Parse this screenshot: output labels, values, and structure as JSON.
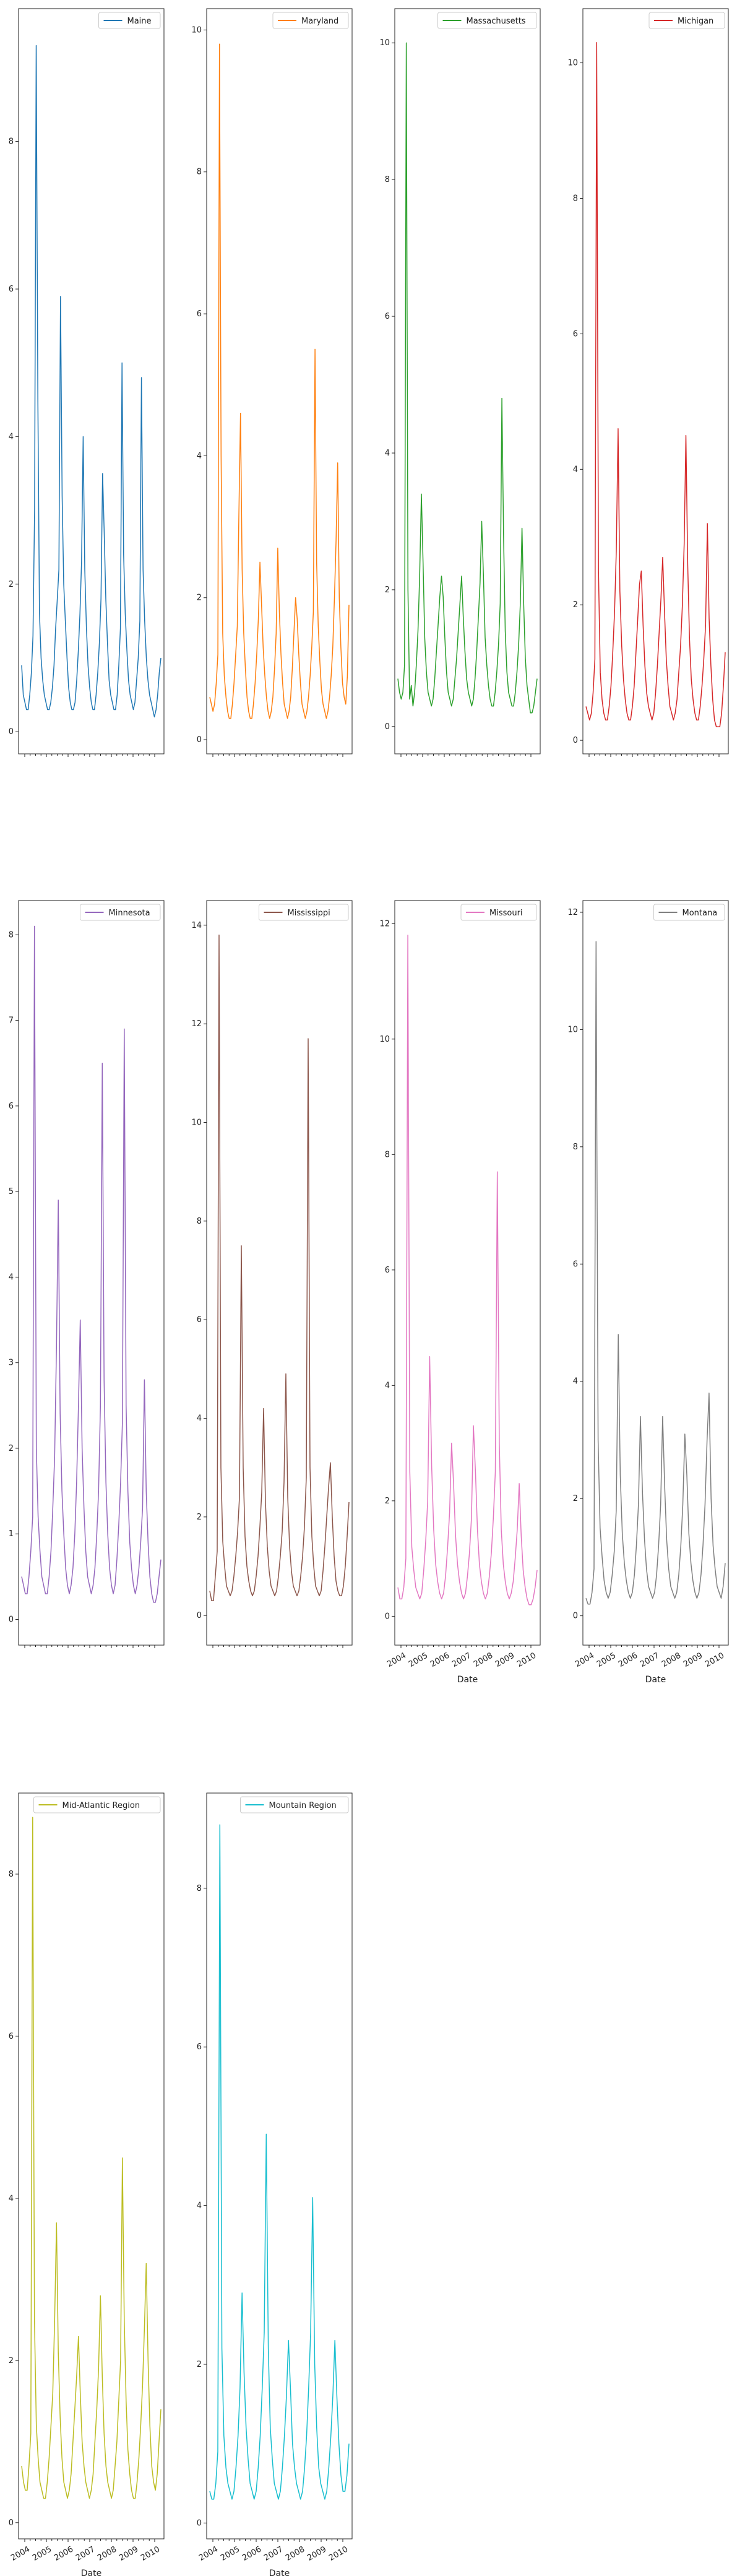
{
  "chart_data": [
    {
      "type": "line",
      "series": [
        {
          "name": "Maine",
          "color": "#1f77b4",
          "y": [
            0.9,
            0.5,
            0.4,
            0.3,
            0.3,
            0.5,
            0.8,
            1.3,
            3.0,
            9.3,
            4.5,
            1.6,
            1.0,
            0.7,
            0.5,
            0.4,
            0.3,
            0.3,
            0.4,
            0.6,
            0.9,
            1.4,
            1.8,
            2.2,
            5.9,
            3.2,
            2.0,
            1.5,
            1.0,
            0.6,
            0.4,
            0.3,
            0.3,
            0.4,
            0.7,
            1.1,
            1.6,
            2.3,
            4.0,
            2.2,
            1.4,
            0.9,
            0.6,
            0.4,
            0.3,
            0.3,
            0.5,
            0.8,
            1.2,
            1.8,
            3.5,
            2.7,
            1.8,
            1.2,
            0.7,
            0.5,
            0.4,
            0.3,
            0.3,
            0.5,
            0.9,
            1.4,
            5.0,
            2.4,
            1.6,
            1.1,
            0.7,
            0.5,
            0.4,
            0.3,
            0.4,
            0.7,
            1.0,
            1.5,
            4.8,
            2.2,
            1.5,
            1.0,
            0.7,
            0.5,
            0.4,
            0.3,
            0.2,
            0.3,
            0.5,
            0.8,
            1.0
          ]
        }
      ],
      "xticks": [
        "",
        "",
        "",
        "",
        "",
        "",
        ""
      ],
      "yticks": [
        0,
        2,
        4,
        6,
        8
      ],
      "ylim": [
        -0.3,
        9.8
      ],
      "xlabel": "",
      "legend": "top-right"
    },
    {
      "type": "line",
      "series": [
        {
          "name": "Maryland",
          "color": "#ff7f0e",
          "y": [
            0.6,
            0.5,
            0.4,
            0.5,
            0.8,
            1.2,
            9.8,
            4.0,
            1.5,
            0.9,
            0.6,
            0.4,
            0.3,
            0.3,
            0.5,
            0.8,
            1.2,
            1.6,
            3.2,
            4.6,
            2.4,
            1.5,
            1.0,
            0.6,
            0.4,
            0.3,
            0.3,
            0.5,
            0.8,
            1.2,
            1.7,
            2.5,
            1.9,
            1.3,
            0.9,
            0.6,
            0.4,
            0.3,
            0.4,
            0.6,
            1.0,
            1.5,
            2.7,
            1.8,
            1.2,
            0.8,
            0.5,
            0.4,
            0.3,
            0.4,
            0.6,
            1.0,
            1.5,
            2.0,
            1.7,
            1.2,
            0.8,
            0.5,
            0.4,
            0.3,
            0.4,
            0.6,
            0.9,
            1.3,
            1.8,
            5.5,
            2.5,
            1.6,
            1.1,
            0.7,
            0.5,
            0.4,
            0.3,
            0.4,
            0.6,
            0.9,
            1.3,
            2.0,
            2.8,
            3.9,
            2.0,
            1.3,
            0.8,
            0.6,
            0.5,
            0.9,
            1.9
          ]
        }
      ],
      "xticks": [
        "",
        "",
        "",
        "",
        "",
        "",
        ""
      ],
      "yticks": [
        0,
        2,
        4,
        6,
        8,
        10
      ],
      "ylim": [
        -0.2,
        10.3
      ],
      "xlabel": "",
      "legend": "top-right"
    },
    {
      "type": "line",
      "series": [
        {
          "name": "Massachusetts",
          "color": "#2ca02c",
          "y": [
            0.7,
            0.5,
            0.4,
            0.5,
            0.9,
            10.0,
            2.0,
            0.4,
            0.6,
            0.3,
            0.5,
            0.9,
            1.4,
            2.2,
            3.4,
            2.4,
            1.3,
            0.8,
            0.5,
            0.4,
            0.3,
            0.4,
            0.7,
            1.1,
            1.5,
            1.9,
            2.2,
            1.9,
            1.3,
            0.8,
            0.5,
            0.4,
            0.3,
            0.4,
            0.7,
            1.0,
            1.4,
            1.8,
            2.2,
            1.6,
            1.1,
            0.7,
            0.5,
            0.4,
            0.3,
            0.4,
            0.7,
            1.1,
            1.6,
            2.1,
            3.0,
            2.2,
            1.3,
            0.9,
            0.6,
            0.4,
            0.3,
            0.3,
            0.5,
            0.8,
            1.2,
            1.8,
            4.8,
            2.8,
            1.4,
            0.8,
            0.5,
            0.4,
            0.3,
            0.3,
            0.5,
            0.8,
            1.2,
            1.8,
            2.9,
            1.8,
            1.0,
            0.6,
            0.4,
            0.2,
            0.2,
            0.3,
            0.5,
            0.7
          ]
        }
      ],
      "xticks": [
        "",
        "",
        "",
        "",
        "",
        "",
        ""
      ],
      "yticks": [
        0,
        2,
        4,
        6,
        8,
        10
      ],
      "ylim": [
        -0.4,
        10.5
      ],
      "xlabel": "",
      "legend": "top-right"
    },
    {
      "type": "line",
      "series": [
        {
          "name": "Michigan",
          "color": "#d62728",
          "y": [
            0.5,
            0.4,
            0.3,
            0.4,
            0.7,
            1.2,
            10.3,
            2.5,
            1.0,
            0.6,
            0.4,
            0.3,
            0.3,
            0.5,
            0.8,
            1.3,
            1.9,
            2.8,
            4.6,
            2.2,
            1.4,
            0.9,
            0.6,
            0.4,
            0.3,
            0.3,
            0.5,
            0.8,
            1.3,
            1.8,
            2.3,
            2.5,
            1.7,
            1.1,
            0.7,
            0.5,
            0.4,
            0.3,
            0.4,
            0.7,
            1.1,
            1.6,
            2.1,
            2.7,
            1.9,
            1.2,
            0.8,
            0.5,
            0.4,
            0.3,
            0.4,
            0.6,
            1.0,
            1.4,
            2.0,
            2.9,
            4.5,
            2.6,
            1.5,
            0.9,
            0.6,
            0.4,
            0.3,
            0.3,
            0.5,
            0.8,
            1.2,
            1.7,
            3.2,
            1.8,
            1.1,
            0.6,
            0.3,
            0.2,
            0.2,
            0.2,
            0.4,
            0.8,
            1.3
          ]
        }
      ],
      "xticks": [
        "",
        "",
        "",
        "",
        "",
        "",
        ""
      ],
      "yticks": [
        0,
        2,
        4,
        6,
        8,
        10
      ],
      "ylim": [
        -0.2,
        10.8
      ],
      "xlabel": "",
      "legend": "top-right"
    },
    {
      "type": "line",
      "series": [
        {
          "name": "Minnesota",
          "color": "#9467bd",
          "y": [
            0.5,
            0.4,
            0.3,
            0.3,
            0.5,
            0.8,
            1.2,
            8.1,
            2.0,
            1.2,
            0.8,
            0.5,
            0.4,
            0.3,
            0.3,
            0.5,
            0.8,
            1.3,
            1.9,
            3.2,
            4.9,
            2.4,
            1.5,
            1.0,
            0.6,
            0.4,
            0.3,
            0.4,
            0.6,
            1.0,
            1.6,
            2.5,
            3.5,
            2.0,
            1.3,
            0.8,
            0.5,
            0.4,
            0.3,
            0.4,
            0.6,
            1.0,
            1.5,
            2.5,
            6.5,
            2.8,
            1.6,
            1.0,
            0.6,
            0.4,
            0.3,
            0.4,
            0.7,
            1.1,
            1.6,
            2.3,
            6.9,
            2.5,
            1.5,
            0.9,
            0.6,
            0.4,
            0.3,
            0.4,
            0.6,
            0.9,
            1.3,
            2.8,
            1.5,
            0.9,
            0.5,
            0.3,
            0.2,
            0.2,
            0.3,
            0.5,
            0.7
          ]
        }
      ],
      "xticks": [
        "",
        "",
        "",
        "",
        "",
        "",
        ""
      ],
      "yticks": [
        0,
        1,
        2,
        3,
        4,
        5,
        6,
        7,
        8
      ],
      "ylim": [
        -0.3,
        8.4
      ],
      "xlabel": "",
      "legend": "top-right"
    },
    {
      "type": "line",
      "series": [
        {
          "name": "Mississippi",
          "color": "#8c564b",
          "y": [
            0.5,
            0.3,
            0.3,
            0.8,
            1.3,
            13.8,
            3.0,
            1.5,
            1.0,
            0.6,
            0.5,
            0.4,
            0.5,
            0.8,
            1.2,
            1.7,
            2.4,
            7.5,
            3.0,
            1.6,
            1.0,
            0.7,
            0.5,
            0.4,
            0.5,
            0.8,
            1.2,
            1.8,
            2.5,
            4.2,
            2.3,
            1.4,
            0.9,
            0.6,
            0.5,
            0.4,
            0.5,
            0.8,
            1.2,
            1.7,
            2.7,
            4.9,
            2.4,
            1.4,
            0.9,
            0.6,
            0.5,
            0.4,
            0.5,
            0.8,
            1.2,
            1.8,
            2.8,
            11.7,
            3.0,
            1.6,
            1.0,
            0.6,
            0.5,
            0.4,
            0.5,
            0.9,
            1.4,
            2.0,
            2.6,
            3.1,
            2.0,
            1.2,
            0.7,
            0.5,
            0.4,
            0.4,
            0.6,
            1.0,
            1.6,
            2.3
          ]
        }
      ],
      "xticks": [
        "",
        "",
        "",
        "",
        "",
        "",
        ""
      ],
      "yticks": [
        0,
        2,
        4,
        6,
        8,
        10,
        12,
        14
      ],
      "ylim": [
        -0.6,
        14.5
      ],
      "xlabel": "",
      "legend": "top-right"
    },
    {
      "type": "line",
      "series": [
        {
          "name": "Missouri",
          "color": "#e377c2",
          "y": [
            0.5,
            0.3,
            0.3,
            0.5,
            1.0,
            11.8,
            2.5,
            1.2,
            0.8,
            0.5,
            0.4,
            0.3,
            0.4,
            0.8,
            1.3,
            2.0,
            4.5,
            2.6,
            1.5,
            0.9,
            0.6,
            0.4,
            0.3,
            0.4,
            0.7,
            1.2,
            1.8,
            3.0,
            2.3,
            1.4,
            0.9,
            0.6,
            0.4,
            0.3,
            0.4,
            0.7,
            1.1,
            1.7,
            3.3,
            2.5,
            1.5,
            0.9,
            0.6,
            0.4,
            0.3,
            0.4,
            0.7,
            1.1,
            1.7,
            2.5,
            7.7,
            3.0,
            1.5,
            0.9,
            0.6,
            0.4,
            0.3,
            0.4,
            0.6,
            1.0,
            1.5,
            2.3,
            1.4,
            0.8,
            0.5,
            0.3,
            0.2,
            0.2,
            0.3,
            0.5,
            0.8
          ]
        }
      ],
      "xticks": [
        "2004",
        "2005",
        "2006",
        "2007",
        "2008",
        "2009",
        "2010"
      ],
      "yticks": [
        0,
        2,
        4,
        6,
        8,
        10,
        12
      ],
      "ylim": [
        -0.5,
        12.4
      ],
      "xlabel": "Date",
      "legend": "top-right"
    },
    {
      "type": "line",
      "series": [
        {
          "name": "Montana",
          "color": "#7f7f7f",
          "y": [
            0.3,
            0.2,
            0.2,
            0.4,
            0.8,
            11.5,
            3.0,
            1.5,
            1.0,
            0.6,
            0.4,
            0.3,
            0.4,
            0.7,
            1.1,
            1.8,
            4.8,
            2.4,
            1.4,
            0.9,
            0.6,
            0.4,
            0.3,
            0.4,
            0.7,
            1.2,
            1.9,
            3.4,
            2.1,
            1.3,
            0.8,
            0.5,
            0.4,
            0.3,
            0.4,
            0.7,
            1.2,
            1.9,
            3.4,
            2.2,
            1.3,
            0.8,
            0.5,
            0.4,
            0.3,
            0.4,
            0.7,
            1.2,
            1.9,
            3.1,
            2.4,
            1.4,
            0.9,
            0.6,
            0.4,
            0.3,
            0.4,
            0.7,
            1.2,
            1.9,
            3.0,
            3.8,
            2.0,
            1.2,
            0.8,
            0.5,
            0.4,
            0.3,
            0.5,
            0.9
          ]
        }
      ],
      "xticks": [
        "2004",
        "2005",
        "2006",
        "2007",
        "2008",
        "2009",
        "2010"
      ],
      "yticks": [
        0,
        2,
        4,
        6,
        8,
        10,
        12
      ],
      "ylim": [
        -0.5,
        12.2
      ],
      "xlabel": "Date",
      "legend": "top-right"
    },
    {
      "type": "line",
      "series": [
        {
          "name": "Mid-Atlantic Region",
          "color": "#bcbd22",
          "y": [
            0.7,
            0.5,
            0.4,
            0.4,
            0.7,
            1.1,
            8.7,
            2.5,
            1.2,
            0.8,
            0.5,
            0.4,
            0.3,
            0.3,
            0.5,
            0.8,
            1.2,
            1.6,
            2.5,
            3.7,
            2.1,
            1.3,
            0.8,
            0.5,
            0.4,
            0.3,
            0.4,
            0.6,
            1.0,
            1.4,
            1.8,
            2.3,
            1.6,
            1.0,
            0.7,
            0.5,
            0.4,
            0.3,
            0.4,
            0.6,
            1.0,
            1.4,
            1.9,
            2.8,
            1.8,
            1.1,
            0.7,
            0.5,
            0.4,
            0.3,
            0.4,
            0.7,
            1.0,
            1.5,
            2.0,
            4.5,
            2.5,
            1.5,
            0.9,
            0.6,
            0.4,
            0.3,
            0.3,
            0.5,
            0.8,
            1.2,
            1.7,
            2.4,
            3.2,
            2.0,
            1.2,
            0.7,
            0.5,
            0.4,
            0.6,
            1.0,
            1.4
          ]
        }
      ],
      "xticks": [
        "2004",
        "2005",
        "2006",
        "2007",
        "2008",
        "2009",
        "2010"
      ],
      "yticks": [
        0,
        2,
        4,
        6,
        8
      ],
      "ylim": [
        -0.2,
        9.0
      ],
      "xlabel": "Date",
      "legend": "top-right"
    },
    {
      "type": "line",
      "series": [
        {
          "name": "Mountain Region",
          "color": "#17becf",
          "y": [
            0.4,
            0.3,
            0.3,
            0.5,
            0.9,
            8.8,
            2.2,
            1.1,
            0.7,
            0.5,
            0.4,
            0.3,
            0.4,
            0.7,
            1.1,
            1.7,
            2.9,
            1.9,
            1.2,
            0.8,
            0.5,
            0.4,
            0.3,
            0.4,
            0.7,
            1.1,
            1.7,
            2.4,
            4.9,
            2.2,
            1.2,
            0.8,
            0.5,
            0.4,
            0.3,
            0.4,
            0.7,
            1.1,
            1.6,
            2.3,
            1.7,
            1.0,
            0.7,
            0.5,
            0.4,
            0.3,
            0.4,
            0.7,
            1.1,
            1.7,
            2.4,
            4.1,
            2.0,
            1.2,
            0.7,
            0.5,
            0.4,
            0.3,
            0.4,
            0.7,
            1.1,
            1.6,
            2.3,
            1.6,
            1.0,
            0.6,
            0.4,
            0.4,
            0.6,
            1.0
          ]
        }
      ],
      "xticks": [
        "2004",
        "2005",
        "2006",
        "2007",
        "2008",
        "2009",
        "2010"
      ],
      "yticks": [
        0,
        2,
        4,
        6,
        8
      ],
      "ylim": [
        -0.2,
        9.2
      ],
      "xlabel": "Date",
      "legend": "top-right"
    }
  ]
}
